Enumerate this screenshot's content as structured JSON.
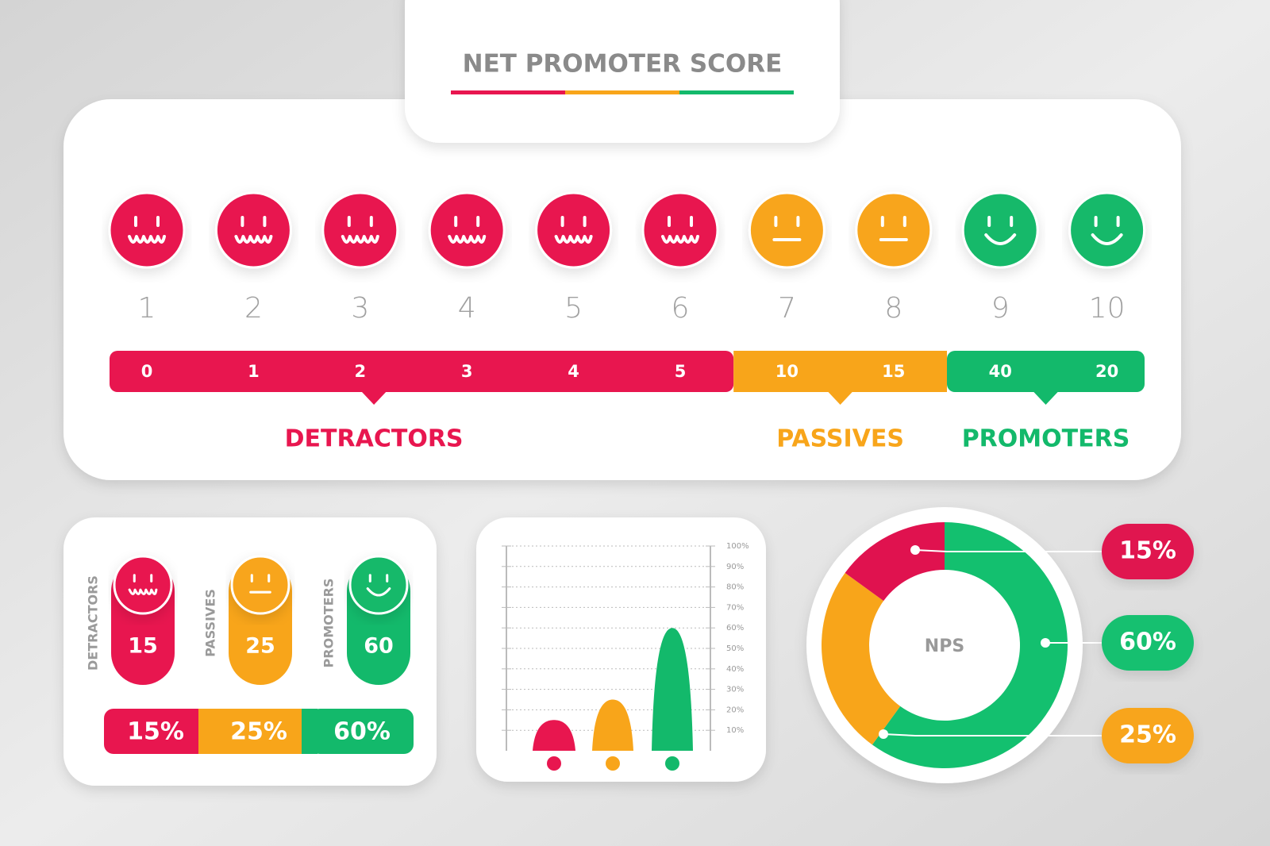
{
  "title": "NET PROMOTER SCORE",
  "scale": {
    "groups": [
      {
        "name": "DETRACTORS",
        "color": "#e8164f",
        "ratings": [
          1,
          2,
          3,
          4,
          5,
          6
        ],
        "counts": [
          0,
          1,
          2,
          3,
          4,
          5
        ]
      },
      {
        "name": "PASSIVES",
        "color": "#f8a51a",
        "ratings": [
          7,
          8
        ],
        "counts": [
          10,
          15
        ]
      },
      {
        "name": "PROMOTERS",
        "color": "#13b96b",
        "ratings": [
          9,
          10
        ],
        "counts": [
          40,
          20
        ]
      }
    ]
  },
  "summary": {
    "items": [
      {
        "label": "DETRACTORS",
        "count": 15,
        "share": "15%"
      },
      {
        "label": "PASSIVES",
        "count": 25,
        "share": "25%"
      },
      {
        "label": "PROMOTERS",
        "count": 60,
        "share": "60%"
      }
    ]
  },
  "chart_data": [
    {
      "type": "peak",
      "values": [
        15,
        25,
        60
      ],
      "colors": [
        "#e8164f",
        "#f8a51a",
        "#13b96b"
      ],
      "ylim": [
        0,
        100
      ],
      "yticks": [
        {
          "value": 10,
          "label": "10%"
        },
        {
          "value": 20,
          "label": "20%"
        },
        {
          "value": 30,
          "label": "30%"
        },
        {
          "value": 40,
          "label": "40%"
        },
        {
          "value": 50,
          "label": "50%"
        },
        {
          "value": 60,
          "label": "60%"
        },
        {
          "value": 70,
          "label": "70%"
        },
        {
          "value": 80,
          "label": "80%"
        },
        {
          "value": 90,
          "label": "90%"
        },
        {
          "value": 100,
          "label": "100%"
        }
      ],
      "grid": true
    },
    {
      "type": "pie",
      "center_label": "NPS",
      "values": [
        60,
        25,
        15
      ],
      "value_labels": [
        "60%",
        "25%",
        "15%"
      ],
      "colors": [
        "#13c06f",
        "#f8a51a",
        "#e0124f"
      ]
    }
  ]
}
